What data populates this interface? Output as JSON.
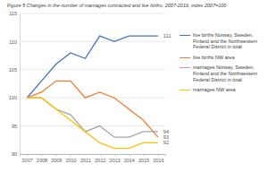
{
  "chart_data": {
    "type": "line",
    "title": "Figure 5 Changes in the number of marriages contracted and live births, 2007-2016, index 2007=100",
    "categories": [
      "2007",
      "2008",
      "2009",
      "2010",
      "2011",
      "2012",
      "2013",
      "2014",
      "2015",
      "2016"
    ],
    "series": [
      {
        "name": "live births Norway, Sweden, Finland and the Northwestern Federal District in total",
        "color": "#4472c4",
        "values": [
          100,
          103,
          106,
          108,
          107,
          111,
          110,
          111,
          111,
          111
        ]
      },
      {
        "name": "live births NW area",
        "color": "#ed7d31",
        "values": [
          100,
          101,
          103,
          103,
          100,
          101,
          100,
          98,
          96,
          93
        ]
      },
      {
        "name": "marriages Norway, Sweden, Finland and the Northwestern Federal District in total",
        "color": "#a5a5a5",
        "values": [
          100,
          100,
          98,
          97,
          94,
          95,
          93,
          93,
          94,
          94
        ]
      },
      {
        "name": "marriages NW area",
        "color": "#ffc000",
        "values": [
          100,
          100,
          98,
          96,
          94,
          92,
          91,
          91,
          92,
          92
        ]
      }
    ],
    "ylim": [
      90,
      115
    ],
    "yticks": [
      90,
      95,
      100,
      105,
      110,
      115
    ],
    "grid": true,
    "legend": "right",
    "data_labels": true
  }
}
